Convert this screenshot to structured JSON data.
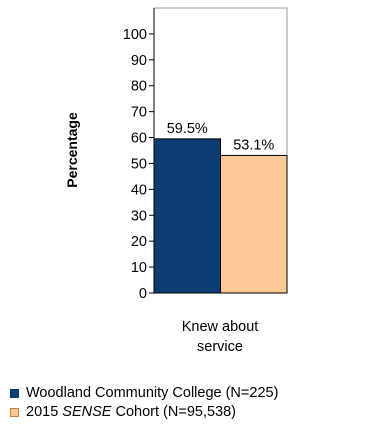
{
  "chart_data": {
    "type": "bar",
    "categories": [
      "Knew about\nservice"
    ],
    "category_lines": [
      "Knew about",
      "service"
    ],
    "series": [
      {
        "name": "Woodland Community College (N=225)",
        "values": [
          59.5
        ],
        "labels": [
          "59.5%"
        ],
        "color": "#0d3c73"
      },
      {
        "name": "2015 SENSE Cohort (N=95,538)",
        "values": [
          53.1
        ],
        "labels": [
          "53.1%"
        ],
        "color": "#fbc896"
      }
    ],
    "ylabel": "Percentage",
    "xlabel": "",
    "ylim": [
      0,
      110
    ],
    "yticks": [
      "0",
      "10",
      "20",
      "30",
      "40",
      "50",
      "60",
      "70",
      "80",
      "90",
      "100"
    ],
    "grid": false,
    "legend_position": "bottom-left"
  },
  "legend": {
    "items": [
      {
        "prefix": "Woodland Community College (N=225)",
        "emph": "",
        "suffix": "",
        "color": "#0d3c73"
      },
      {
        "prefix": "2015 ",
        "emph": "SENSE",
        "suffix": " Cohort (N=95,538)",
        "color": "#fbc896"
      }
    ]
  }
}
